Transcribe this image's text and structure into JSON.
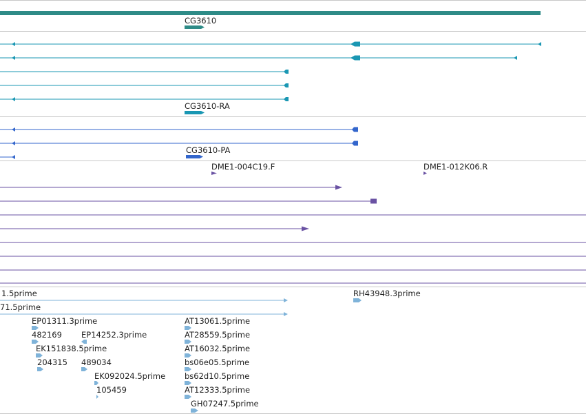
{
  "colors": {
    "gene": "#2e8b87",
    "transcript": "#1a97b3",
    "protein": "#3366cc",
    "insert": "#6a52a3",
    "cdna": "#7fb3d9",
    "separator": "#c8c8c8",
    "label": "#222222"
  },
  "gene_track": {
    "label": "CG3610"
  },
  "transcript_track": {
    "label": "CG3610-RA"
  },
  "protein_track": {
    "label": "CG3610-PA"
  },
  "insert_track": {
    "labels": [
      "DME1-004C19.F",
      "DME1-012K06.R"
    ]
  },
  "cdna_track": {
    "labels": [
      "1.5prime",
      "RH43948.3prime",
      "71.5prime",
      "EP01311.3prime",
      "AT13061.5prime",
      "482169",
      "EP14252.3prime",
      "AT28559.5prime",
      "EK151838.5prime",
      "AT16032.5prime",
      "204315",
      "489034",
      "bs06e05.5prime",
      "EK092024.5prime",
      "bs62d10.5prime",
      "105459",
      "AT12333.5prime",
      "GH07247.5prime"
    ]
  }
}
